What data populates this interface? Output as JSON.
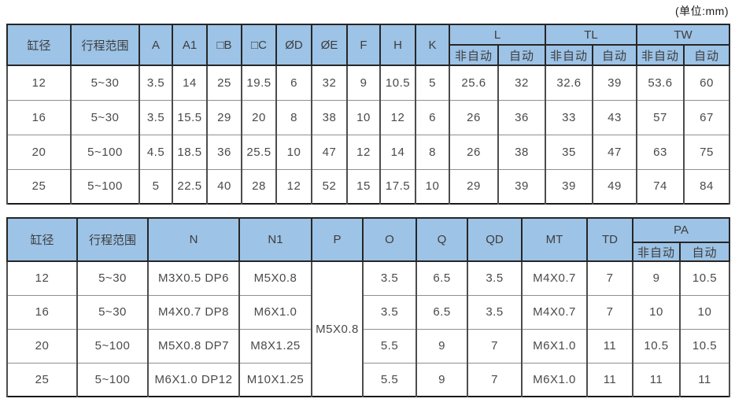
{
  "unit_label": "(单位:mm)",
  "colors": {
    "header_bg": "#9DC3E6",
    "outer_border": "#1A1A1A",
    "grid_dark": "#4D4D4D",
    "grid_light": "#8F8F8F",
    "text": "#4A4A4A"
  },
  "table1": {
    "columns": [
      "缸径",
      "行程范围",
      "A",
      "A1",
      "□B",
      "□C",
      "ØD",
      "ØE",
      "F",
      "H",
      "K"
    ],
    "groups": [
      {
        "label": "L",
        "subs": [
          "非自动",
          "自动"
        ]
      },
      {
        "label": "TL",
        "subs": [
          "非自动",
          "自动"
        ]
      },
      {
        "label": "TW",
        "subs": [
          "非自动",
          "自动"
        ]
      }
    ],
    "rows": [
      [
        "12",
        "5~30",
        "3.5",
        "14",
        "25",
        "19.5",
        "6",
        "32",
        "9",
        "10.5",
        "5",
        "25.6",
        "32",
        "32.6",
        "39",
        "53.6",
        "60"
      ],
      [
        "16",
        "5~30",
        "3.5",
        "15.5",
        "29",
        "20",
        "8",
        "38",
        "10",
        "12",
        "6",
        "26",
        "36",
        "33",
        "43",
        "57",
        "67"
      ],
      [
        "20",
        "5~100",
        "4.5",
        "18.5",
        "36",
        "25.5",
        "10",
        "47",
        "12",
        "14",
        "8",
        "26",
        "38",
        "35",
        "47",
        "63",
        "75"
      ],
      [
        "25",
        "5~100",
        "5",
        "22.5",
        "40",
        "28",
        "12",
        "52",
        "15",
        "17.5",
        "10",
        "29",
        "39",
        "39",
        "49",
        "74",
        "84"
      ]
    ]
  },
  "table2": {
    "columns": [
      "缸径",
      "行程范围",
      "N",
      "N1",
      "P",
      "O",
      "Q",
      "QD",
      "MT",
      "TD"
    ],
    "groups": [
      {
        "label": "PA",
        "subs": [
          "非自动",
          "自动"
        ]
      }
    ],
    "merged": {
      "col_index": 4,
      "value": "M5X0.8"
    },
    "rows": [
      [
        "12",
        "5~30",
        "M3X0.5 DP6",
        "M5X0.8",
        "3.5",
        "6.5",
        "3.5",
        "M4X0.7",
        "7",
        "9",
        "10.5"
      ],
      [
        "16",
        "5~30",
        "M4X0.7 DP8",
        "M6X1.0",
        "3.5",
        "6.5",
        "3.5",
        "M4X0.7",
        "7",
        "10",
        "10"
      ],
      [
        "20",
        "5~100",
        "M5X0.8 DP7",
        "M8X1.25",
        "5.5",
        "9",
        "7",
        "M6X1.0",
        "11",
        "10.5",
        "10.5"
      ],
      [
        "25",
        "5~100",
        "M6X1.0 DP12",
        "M10X1.25",
        "5.5",
        "9",
        "7",
        "M6X1.0",
        "11",
        "11",
        "11"
      ]
    ]
  }
}
